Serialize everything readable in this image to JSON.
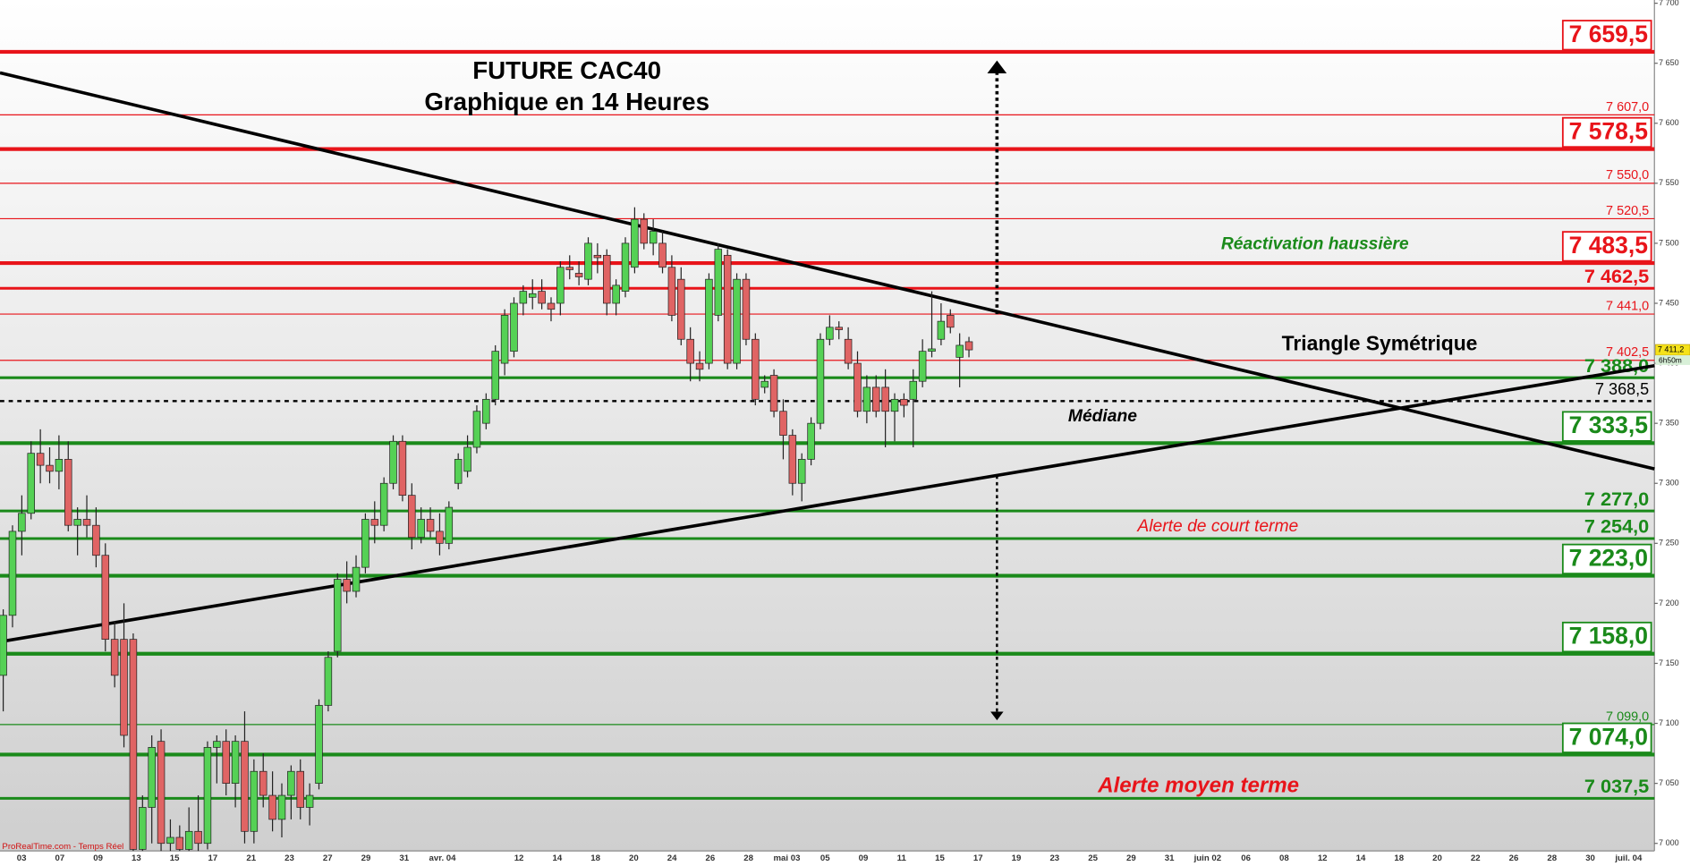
{
  "chart_data": {
    "type": "candlestick",
    "title": "FUTURE CAC40",
    "subtitle": "Graphique en 14 Heures",
    "source": "ProRealTime.com - Temps Réel",
    "annotation_reactivation": "Réactivation haussière",
    "annotation_triangle": "Triangle Symétrique",
    "annotation_median": "Médiane",
    "annotation_short_alert": "Alerte de court terme",
    "annotation_medium_alert": "Alerte moyen terme",
    "colors": {
      "up": "#55d155",
      "down": "#e06464"
    },
    "categories": [
      "03",
      "07",
      "09",
      "13",
      "15",
      "17",
      "21",
      "23",
      "27",
      "29",
      "31",
      "avr. 04",
      null,
      "12",
      "14",
      "18",
      "20",
      "24",
      "26",
      "28",
      "mai 03",
      "05",
      "09",
      "11",
      "15",
      "17",
      "19",
      "23",
      "25",
      "29",
      "31",
      "juin 02",
      "06",
      "08",
      "12",
      "14",
      "18",
      "20",
      "22",
      "26",
      "28",
      "30",
      "juil. 04"
    ],
    "candles": [
      [
        7140,
        7195,
        7110,
        7190
      ],
      [
        7190,
        7265,
        7180,
        7260
      ],
      [
        7260,
        7290,
        7240,
        7275
      ],
      [
        7275,
        7335,
        7270,
        7325
      ],
      [
        7325,
        7345,
        7300,
        7315
      ],
      [
        7315,
        7330,
        7300,
        7310
      ],
      [
        7310,
        7340,
        7295,
        7320
      ],
      [
        7320,
        7335,
        7260,
        7265
      ],
      [
        7265,
        7280,
        7240,
        7270
      ],
      [
        7270,
        7290,
        7255,
        7265
      ],
      [
        7265,
        7280,
        7230,
        7240
      ],
      [
        7240,
        7250,
        7160,
        7170
      ],
      [
        7170,
        7185,
        7130,
        7140
      ],
      [
        7170,
        7200,
        7080,
        7090
      ],
      [
        7170,
        7175,
        6990,
        6995
      ],
      [
        6995,
        7040,
        6980,
        7030
      ],
      [
        7030,
        7090,
        7000,
        7080
      ],
      [
        7085,
        7095,
        6990,
        7000
      ],
      [
        7000,
        7020,
        6980,
        7005
      ],
      [
        7005,
        7015,
        6985,
        6995
      ],
      [
        6995,
        7030,
        6985,
        7010
      ],
      [
        7010,
        7040,
        6990,
        7000
      ],
      [
        7000,
        7085,
        6995,
        7080
      ],
      [
        7080,
        7090,
        7050,
        7085
      ],
      [
        7085,
        7095,
        7040,
        7050
      ],
      [
        7050,
        7090,
        7030,
        7085
      ],
      [
        7085,
        7110,
        7000,
        7010
      ],
      [
        7010,
        7070,
        7000,
        7060
      ],
      [
        7060,
        7075,
        7030,
        7040
      ],
      [
        7040,
        7060,
        7010,
        7020
      ],
      [
        7020,
        7050,
        7005,
        7040
      ],
      [
        7040,
        7065,
        7020,
        7060
      ],
      [
        7060,
        7070,
        7020,
        7030
      ],
      [
        7030,
        7050,
        7015,
        7040
      ],
      [
        7050,
        7120,
        7045,
        7115
      ],
      [
        7115,
        7160,
        7110,
        7155
      ],
      [
        7160,
        7225,
        7155,
        7220
      ],
      [
        7220,
        7235,
        7200,
        7210
      ],
      [
        7210,
        7240,
        7205,
        7230
      ],
      [
        7230,
        7275,
        7225,
        7270
      ],
      [
        7270,
        7285,
        7250,
        7265
      ],
      [
        7265,
        7305,
        7260,
        7300
      ],
      [
        7300,
        7340,
        7295,
        7335
      ],
      [
        7335,
        7340,
        7285,
        7290
      ],
      [
        7290,
        7300,
        7245,
        7255
      ],
      [
        7255,
        7280,
        7250,
        7270
      ],
      [
        7270,
        7280,
        7255,
        7260
      ],
      [
        7260,
        7275,
        7240,
        7250
      ],
      [
        7250,
        7285,
        7245,
        7280
      ],
      [
        7300,
        7325,
        7295,
        7320
      ],
      [
        7310,
        7340,
        7305,
        7330
      ],
      [
        7330,
        7365,
        7325,
        7360
      ],
      [
        7350,
        7375,
        7345,
        7370
      ],
      [
        7370,
        7415,
        7365,
        7410
      ],
      [
        7400,
        7445,
        7390,
        7440
      ],
      [
        7410,
        7455,
        7405,
        7450
      ],
      [
        7450,
        7465,
        7440,
        7460
      ],
      [
        7455,
        7470,
        7445,
        7458
      ],
      [
        7460,
        7470,
        7445,
        7450
      ],
      [
        7450,
        7455,
        7435,
        7445
      ],
      [
        7450,
        7485,
        7440,
        7480
      ],
      [
        7480,
        7490,
        7470,
        7478
      ],
      [
        7475,
        7485,
        7465,
        7472
      ],
      [
        7470,
        7505,
        7465,
        7500
      ],
      [
        7490,
        7500,
        7475,
        7488
      ],
      [
        7490,
        7495,
        7440,
        7450
      ],
      [
        7450,
        7470,
        7440,
        7465
      ],
      [
        7460,
        7505,
        7455,
        7500
      ],
      [
        7480,
        7530,
        7475,
        7520
      ],
      [
        7520,
        7525,
        7495,
        7500
      ],
      [
        7500,
        7520,
        7490,
        7510
      ],
      [
        7500,
        7510,
        7475,
        7480
      ],
      [
        7480,
        7490,
        7435,
        7440
      ],
      [
        7470,
        7480,
        7415,
        7420
      ],
      [
        7420,
        7430,
        7385,
        7400
      ],
      [
        7400,
        7410,
        7385,
        7395
      ],
      [
        7400,
        7475,
        7395,
        7470
      ],
      [
        7440,
        7500,
        7435,
        7495
      ],
      [
        7490,
        7495,
        7395,
        7400
      ],
      [
        7400,
        7475,
        7395,
        7470
      ],
      [
        7470,
        7475,
        7415,
        7420
      ],
      [
        7420,
        7425,
        7365,
        7370
      ],
      [
        7380,
        7390,
        7375,
        7385
      ],
      [
        7390,
        7395,
        7355,
        7360
      ],
      [
        7360,
        7370,
        7320,
        7340
      ],
      [
        7340,
        7345,
        7290,
        7300
      ],
      [
        7300,
        7325,
        7285,
        7320
      ],
      [
        7320,
        7355,
        7315,
        7350
      ],
      [
        7350,
        7425,
        7345,
        7420
      ],
      [
        7420,
        7440,
        7415,
        7430
      ],
      [
        7430,
        7435,
        7420,
        7428
      ],
      [
        7420,
        7430,
        7395,
        7400
      ],
      [
        7400,
        7410,
        7355,
        7360
      ],
      [
        7360,
        7390,
        7350,
        7380
      ],
      [
        7380,
        7390,
        7355,
        7360
      ],
      [
        7380,
        7395,
        7330,
        7360
      ],
      [
        7360,
        7375,
        7335,
        7370
      ],
      [
        7370,
        7375,
        7355,
        7365
      ],
      [
        7370,
        7395,
        7330,
        7385
      ],
      [
        7385,
        7420,
        7380,
        7410
      ],
      [
        7410,
        7460,
        7405,
        7412
      ],
      [
        7420,
        7450,
        7415,
        7435
      ],
      [
        7440,
        7445,
        7425,
        7430
      ],
      [
        7405,
        7425,
        7380,
        7415
      ],
      [
        7418,
        7422,
        7405,
        7411.2
      ]
    ],
    "ylim": [
      7000,
      7700
    ],
    "yticks": [
      {
        "value": 7000,
        "label": "7 000"
      },
      {
        "value": 7050,
        "label": "7 050"
      },
      {
        "value": 7100,
        "label": "7 100"
      },
      {
        "value": 7150,
        "label": "7 150"
      },
      {
        "value": 7200,
        "label": "7 200"
      },
      {
        "value": 7250,
        "label": "7 250"
      },
      {
        "value": 7300,
        "label": "7 300"
      },
      {
        "value": 7350,
        "label": "7 350"
      },
      {
        "value": 7400,
        "label": "7 400"
      },
      {
        "value": 7450,
        "label": "7 450"
      },
      {
        "value": 7500,
        "label": "7 500"
      },
      {
        "value": 7550,
        "label": "7 550"
      },
      {
        "value": 7600,
        "label": "7 600"
      },
      {
        "value": 7650,
        "label": "7 650"
      },
      {
        "value": 7700,
        "label": "7 700"
      }
    ],
    "levels": [
      {
        "value": 7659.5,
        "label": "7 659,5",
        "color": "#e8141a",
        "weight": "thick",
        "boxed": true
      },
      {
        "value": 7607.0,
        "label": "7 607,0",
        "color": "#e8141a",
        "weight": "thin"
      },
      {
        "value": 7578.5,
        "label": "7 578,5",
        "color": "#e8141a",
        "weight": "thick",
        "boxed": true
      },
      {
        "value": 7550.0,
        "label": "7 550,0",
        "color": "#e8141a",
        "weight": "thin"
      },
      {
        "value": 7520.5,
        "label": "7 520,5",
        "color": "#e8141a",
        "weight": "thin"
      },
      {
        "value": 7483.5,
        "label": "7 483,5",
        "color": "#e8141a",
        "weight": "thick",
        "boxed": true
      },
      {
        "value": 7462.5,
        "label": "7 462,5",
        "color": "#e8141a",
        "weight": "medium"
      },
      {
        "value": 7441.0,
        "label": "7 441,0",
        "color": "#e8141a",
        "weight": "thin"
      },
      {
        "value": 7402.5,
        "label": "7 402,5",
        "color": "#e8141a",
        "weight": "thin"
      },
      {
        "value": 7388.0,
        "label": "7 388,0",
        "color": "#1a8a1a",
        "weight": "medium"
      },
      {
        "value": 7368.5,
        "label": "7 368,5",
        "color": "#000000",
        "weight": "dashed"
      },
      {
        "value": 7333.5,
        "label": "7 333,5",
        "color": "#1a8a1a",
        "weight": "thick",
        "boxed": true
      },
      {
        "value": 7277.0,
        "label": "7 277,0",
        "color": "#1a8a1a",
        "weight": "medium"
      },
      {
        "value": 7254.0,
        "label": "7 254,0",
        "color": "#1a8a1a",
        "weight": "medium"
      },
      {
        "value": 7223.0,
        "label": "7 223,0",
        "color": "#1a8a1a",
        "weight": "thick",
        "boxed": true
      },
      {
        "value": 7158.0,
        "label": "7 158,0",
        "color": "#1a8a1a",
        "weight": "thick",
        "boxed": true
      },
      {
        "value": 7099.0,
        "label": "7 099,0",
        "color": "#1a8a1a",
        "weight": "thin"
      },
      {
        "value": 7074.0,
        "label": "7 074,0",
        "color": "#1a8a1a",
        "weight": "thick",
        "boxed": true
      },
      {
        "value": 7037.5,
        "label": "7 037,5",
        "color": "#1a8a1a",
        "weight": "medium"
      }
    ],
    "trendlines": [
      {
        "from": 7642,
        "to": 7312
      },
      {
        "from": 7168,
        "to": 7398
      }
    ],
    "last_price": {
      "value": 7411.2,
      "label": "7 411,2"
    },
    "countdown": "6h50m"
  }
}
